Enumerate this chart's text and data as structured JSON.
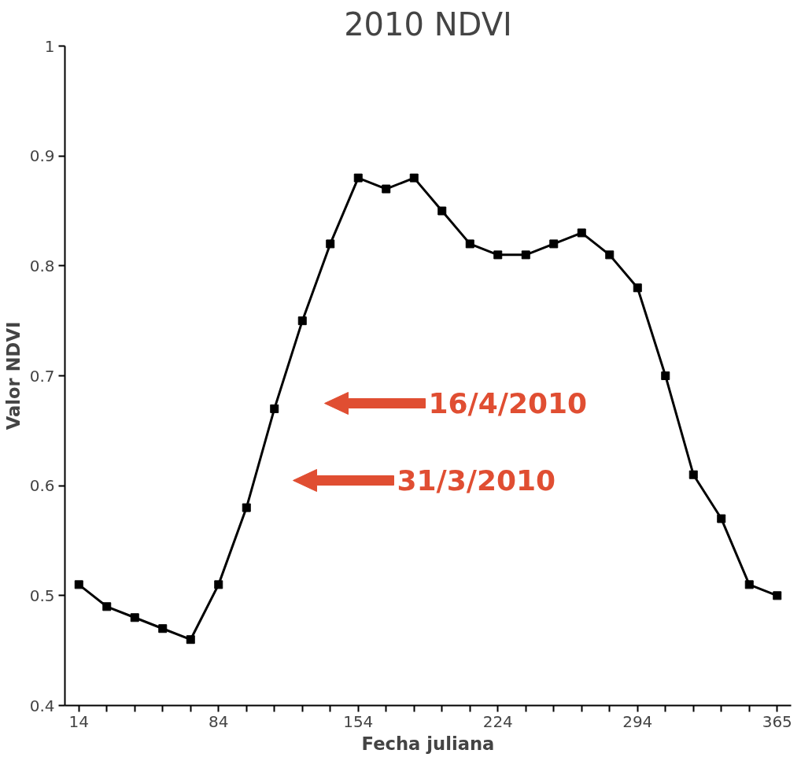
{
  "chart_data": {
    "type": "line",
    "title": "2010 NDVI",
    "xlabel": "Fecha juliana",
    "ylabel": "Valor NDVI",
    "categories": [
      "14",
      null,
      null,
      null,
      null,
      "84",
      null,
      null,
      null,
      null,
      "154",
      null,
      null,
      null,
      null,
      "224",
      null,
      null,
      null,
      null,
      "294",
      null,
      null,
      null,
      null,
      "365"
    ],
    "series": [
      {
        "color": "#000000",
        "values": [
          0.51,
          0.49,
          0.48,
          0.47,
          0.46,
          0.51,
          0.58,
          0.67,
          0.75,
          0.82,
          0.88,
          0.87,
          0.88,
          0.85,
          0.82,
          0.81,
          0.81,
          0.82,
          0.83,
          0.81,
          0.78,
          0.7,
          0.61,
          0.57,
          0.51,
          0.5
        ]
      }
    ],
    "ylim": [
      0.4,
      1
    ],
    "yticks": [
      0.4,
      0.5,
      0.6,
      0.7,
      0.8,
      0.9,
      1
    ],
    "grid": false,
    "marker": "square",
    "line_style": "solid",
    "annotations": [
      "16/4/2010",
      "31/3/2010"
    ]
  }
}
